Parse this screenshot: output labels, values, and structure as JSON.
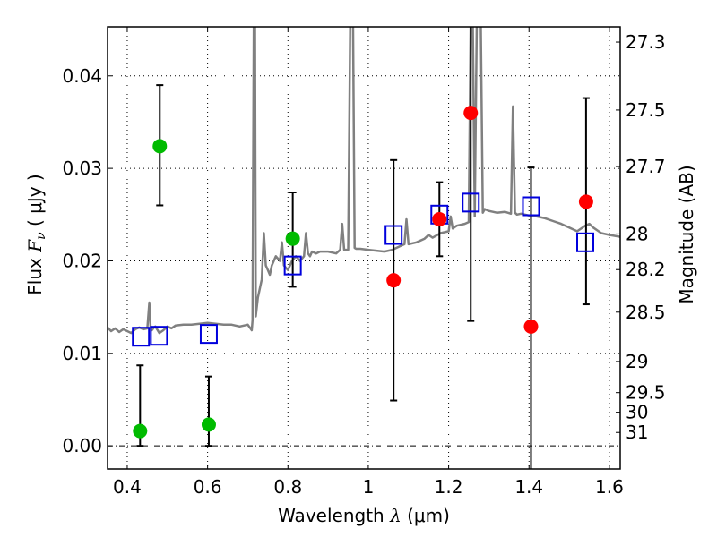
{
  "chart_data": {
    "type": "scatter",
    "title": "",
    "xlabel": "Wavelength  λ (μm)",
    "ylabel": "Flux  Fν ( μJy )",
    "ylabel_parts": {
      "pre": "Flux  ",
      "sym": "F",
      "sub": "ν",
      "post": "  ( μJy )"
    },
    "xlabel_parts": {
      "pre": "Wavelength  ",
      "sym": "λ",
      "post": " (μm)"
    },
    "y2label": "Magnitude (AB)",
    "xlim": [
      0.351,
      1.627
    ],
    "ylim": [
      -0.0025,
      0.0453
    ],
    "grid": true,
    "xticks": [
      0.4,
      0.6,
      0.8,
      1.0,
      1.2,
      1.4,
      1.6
    ],
    "xtick_labels": [
      "0.4",
      "0.6",
      "0.8",
      "1",
      "1.2",
      "1.4",
      "1.6"
    ],
    "yticks": [
      0.0,
      0.01,
      0.02,
      0.03,
      0.04
    ],
    "ytick_labels": [
      "0.00",
      "0.01",
      "0.02",
      "0.03",
      "0.04"
    ],
    "y2_ticks": [
      27.3,
      27.5,
      27.7,
      28,
      28.2,
      28.5,
      29,
      29.5,
      30,
      31
    ],
    "y2_tick_labels": [
      "27.3",
      "27.5",
      "27.7",
      "28",
      "28.2",
      "28.5",
      "29",
      "29.5",
      "30",
      "31"
    ],
    "y2_zeropoint_ab": 23.9,
    "colors": {
      "spectrum": "#808080",
      "observed_green": "#00bb00",
      "observed_red": "#ff0000",
      "model": "#0000dd",
      "errorbar": "#000000"
    },
    "series": [
      {
        "name": "observed-green",
        "kind": "errorbar",
        "x": [
          0.432,
          0.481,
          0.603,
          0.812
        ],
        "y": [
          0.0016,
          0.0324,
          0.0023,
          0.0224
        ],
        "yerr_low": [
          0.0016,
          0.0064,
          0.0023,
          0.0052
        ],
        "yerr_high": [
          0.0071,
          0.0066,
          0.0052,
          0.005
        ]
      },
      {
        "name": "observed-red",
        "kind": "errorbar",
        "x": [
          1.063,
          1.177,
          1.255,
          1.405,
          1.542
        ],
        "y": [
          0.0179,
          0.0245,
          0.036,
          0.0129,
          0.0264
        ],
        "yerr_low": [
          0.013,
          0.004,
          0.0225,
          0.016,
          0.0111
        ],
        "yerr_high": [
          0.013,
          0.004,
          0.0225,
          0.0172,
          0.0112
        ]
      },
      {
        "name": "model-photometry",
        "kind": "open-square",
        "x": [
          0.434,
          0.479,
          0.603,
          0.812,
          1.063,
          1.177,
          1.255,
          1.405,
          1.54
        ],
        "y": [
          0.0118,
          0.0119,
          0.0121,
          0.0195,
          0.0228,
          0.025,
          0.0263,
          0.0259,
          0.022
        ]
      },
      {
        "name": "model-spectrum",
        "kind": "line",
        "x": [
          0.351,
          0.36,
          0.37,
          0.38,
          0.39,
          0.4,
          0.41,
          0.42,
          0.43,
          0.44,
          0.45,
          0.455,
          0.458,
          0.461,
          0.465,
          0.47,
          0.48,
          0.49,
          0.5,
          0.51,
          0.52,
          0.54,
          0.56,
          0.58,
          0.6,
          0.62,
          0.64,
          0.66,
          0.68,
          0.7,
          0.705,
          0.71,
          0.712,
          0.715,
          0.718,
          0.72,
          0.725,
          0.73,
          0.735,
          0.74,
          0.745,
          0.75,
          0.755,
          0.76,
          0.77,
          0.78,
          0.785,
          0.79,
          0.8,
          0.81,
          0.82,
          0.83,
          0.84,
          0.845,
          0.85,
          0.855,
          0.86,
          0.87,
          0.88,
          0.9,
          0.92,
          0.93,
          0.935,
          0.94,
          0.95,
          0.955,
          0.958,
          0.962,
          0.966,
          0.97,
          0.98,
          1.0,
          1.02,
          1.04,
          1.06,
          1.08,
          1.09,
          1.095,
          1.1,
          1.12,
          1.14,
          1.15,
          1.16,
          1.18,
          1.2,
          1.205,
          1.21,
          1.22,
          1.24,
          1.25,
          1.255,
          1.26,
          1.265,
          1.27,
          1.275,
          1.28,
          1.285,
          1.29,
          1.3,
          1.32,
          1.34,
          1.355,
          1.36,
          1.365,
          1.37,
          1.38,
          1.4,
          1.42,
          1.44,
          1.46,
          1.48,
          1.5,
          1.52,
          1.54,
          1.55,
          1.56,
          1.57,
          1.58,
          1.6,
          1.627
        ],
        "y": [
          0.0128,
          0.0124,
          0.0127,
          0.0123,
          0.0126,
          0.0124,
          0.0122,
          0.0126,
          0.0128,
          0.0126,
          0.0127,
          0.0155,
          0.0128,
          0.0125,
          0.0127,
          0.0129,
          0.0122,
          0.0125,
          0.0129,
          0.0127,
          0.013,
          0.0131,
          0.0131,
          0.0132,
          0.0133,
          0.0132,
          0.0131,
          0.0131,
          0.0129,
          0.0131,
          0.0128,
          0.0125,
          0.0136,
          0.046,
          0.046,
          0.014,
          0.016,
          0.017,
          0.018,
          0.023,
          0.0195,
          0.019,
          0.0185,
          0.0195,
          0.0205,
          0.02,
          0.022,
          0.0195,
          0.019,
          0.02,
          0.0205,
          0.02,
          0.0205,
          0.023,
          0.0208,
          0.0205,
          0.021,
          0.0208,
          0.021,
          0.021,
          0.0208,
          0.0212,
          0.024,
          0.0212,
          0.0212,
          0.046,
          0.046,
          0.046,
          0.0214,
          0.0213,
          0.0213,
          0.0212,
          0.0211,
          0.021,
          0.0212,
          0.0216,
          0.0218,
          0.0245,
          0.0218,
          0.022,
          0.0224,
          0.0228,
          0.0225,
          0.023,
          0.0232,
          0.0248,
          0.0235,
          0.0238,
          0.024,
          0.0242,
          0.046,
          0.046,
          0.0248,
          0.046,
          0.046,
          0.046,
          0.0252,
          0.0256,
          0.0254,
          0.0252,
          0.0253,
          0.0251,
          0.0367,
          0.0252,
          0.025,
          0.0251,
          0.0249,
          0.0248,
          0.0246,
          0.0243,
          0.024,
          0.0236,
          0.0232,
          0.0238,
          0.024,
          0.0236,
          0.0233,
          0.023,
          0.0228,
          0.0226
        ]
      }
    ]
  }
}
